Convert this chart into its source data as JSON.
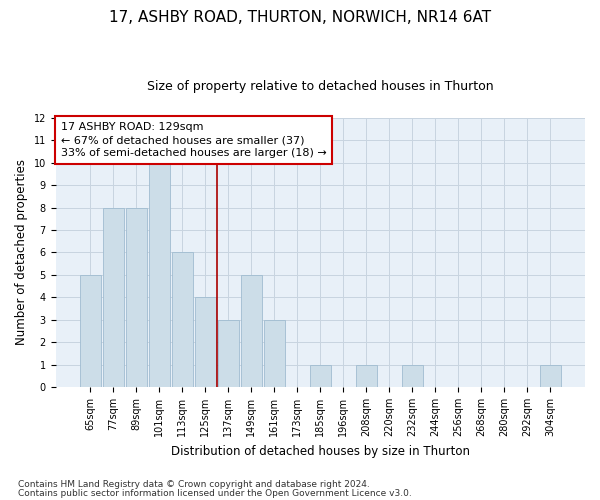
{
  "title1": "17, ASHBY ROAD, THURTON, NORWICH, NR14 6AT",
  "title2": "Size of property relative to detached houses in Thurton",
  "xlabel": "Distribution of detached houses by size in Thurton",
  "ylabel": "Number of detached properties",
  "categories": [
    "65sqm",
    "77sqm",
    "89sqm",
    "101sqm",
    "113sqm",
    "125sqm",
    "137sqm",
    "149sqm",
    "161sqm",
    "173sqm",
    "185sqm",
    "196sqm",
    "208sqm",
    "220sqm",
    "232sqm",
    "244sqm",
    "256sqm",
    "268sqm",
    "280sqm",
    "292sqm",
    "304sqm"
  ],
  "values": [
    5,
    8,
    8,
    10,
    6,
    4,
    3,
    5,
    3,
    0,
    1,
    0,
    1,
    0,
    1,
    0,
    0,
    0,
    0,
    0,
    1
  ],
  "bar_color": "#ccdde8",
  "bar_edge_color": "#a0bcd0",
  "vline_x": 5.5,
  "vline_color": "#aa0000",
  "annotation_text": "17 ASHBY ROAD: 129sqm\n← 67% of detached houses are smaller (37)\n33% of semi-detached houses are larger (18) →",
  "annotation_box_color": "#ffffff",
  "annotation_box_edge": "#cc0000",
  "ylim": [
    0,
    12
  ],
  "yticks": [
    0,
    1,
    2,
    3,
    4,
    5,
    6,
    7,
    8,
    9,
    10,
    11,
    12
  ],
  "grid_color": "#c8d4e0",
  "background_color": "#e8f0f8",
  "footer_line1": "Contains HM Land Registry data © Crown copyright and database right 2024.",
  "footer_line2": "Contains public sector information licensed under the Open Government Licence v3.0.",
  "title1_fontsize": 11,
  "title2_fontsize": 9,
  "axis_label_fontsize": 8.5,
  "tick_fontsize": 7,
  "annotation_fontsize": 8,
  "footer_fontsize": 6.5
}
